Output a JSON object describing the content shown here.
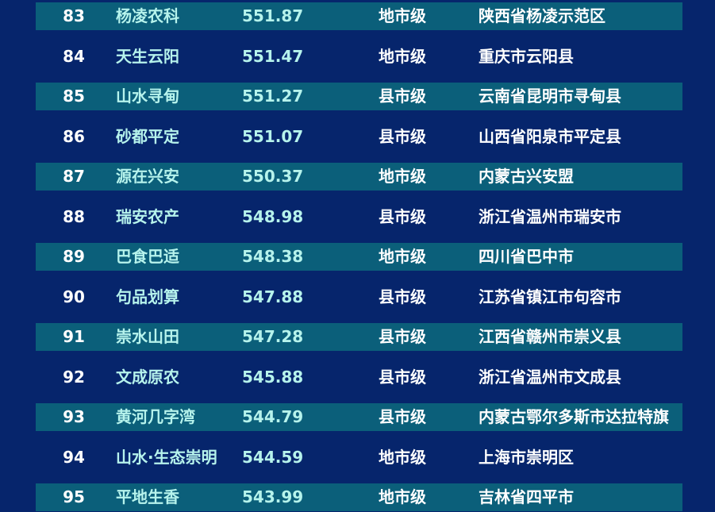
{
  "colors": {
    "background": "#06256c",
    "band": "#0b5f7a",
    "highlight_text": "#b6f3ec",
    "text": "#ffffff"
  },
  "rows": [
    {
      "rank": "83",
      "name": "杨凌农科",
      "score": "551.87",
      "level": "地市级",
      "region": "陕西省杨凌示范区"
    },
    {
      "rank": "84",
      "name": "天生云阳",
      "score": "551.47",
      "level": "地市级",
      "region": "重庆市云阳县"
    },
    {
      "rank": "85",
      "name": "山水寻甸",
      "score": "551.27",
      "level": "县市级",
      "region": "云南省昆明市寻甸县"
    },
    {
      "rank": "86",
      "name": "砂都平定",
      "score": "551.07",
      "level": "县市级",
      "region": "山西省阳泉市平定县"
    },
    {
      "rank": "87",
      "name": "源在兴安",
      "score": "550.37",
      "level": "地市级",
      "region": "内蒙古兴安盟"
    },
    {
      "rank": "88",
      "name": "瑞安农产",
      "score": "548.98",
      "level": "县市级",
      "region": "浙江省温州市瑞安市"
    },
    {
      "rank": "89",
      "name": "巴食巴适",
      "score": "548.38",
      "level": "地市级",
      "region": "四川省巴中市"
    },
    {
      "rank": "90",
      "name": "句品划算",
      "score": "547.88",
      "level": "县市级",
      "region": "江苏省镇江市句容市"
    },
    {
      "rank": "91",
      "name": "崇水山田",
      "score": "547.28",
      "level": "县市级",
      "region": "江西省赣州市崇义县"
    },
    {
      "rank": "92",
      "name": "文成原农",
      "score": "545.88",
      "level": "县市级",
      "region": "浙江省温州市文成县"
    },
    {
      "rank": "93",
      "name": "黄河几字湾",
      "score": "544.79",
      "level": "县市级",
      "region": "内蒙古鄂尔多斯市达拉特旗"
    },
    {
      "rank": "94",
      "name": "山水·生态崇明",
      "score": "544.59",
      "level": "地市级",
      "region": "上海市崇明区"
    },
    {
      "rank": "95",
      "name": "平地生香",
      "score": "543.99",
      "level": "地市级",
      "region": "吉林省四平市"
    }
  ]
}
